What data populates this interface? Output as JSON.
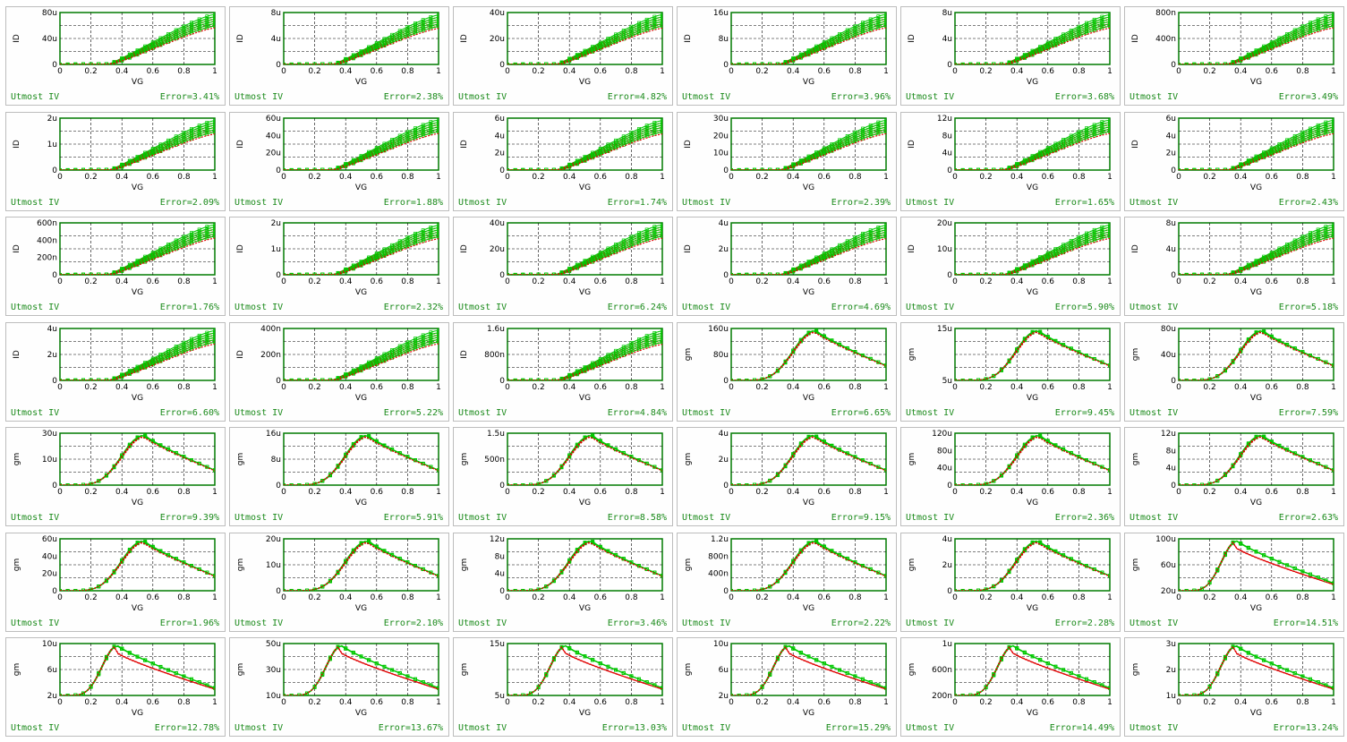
{
  "panel_label": "Utmost IV",
  "colors": {
    "measured": "#00c800",
    "simulated": "#e00000",
    "plot_border": "#007a00",
    "label_text": "#1a8a1a",
    "grid": "#000000"
  },
  "chart_data": [
    {
      "type": "scatter",
      "xlabel": "VG",
      "ylabel": "ID",
      "x_ticks": [
        "0",
        "0.2",
        "0.4",
        "0.6",
        "0.8",
        "1"
      ],
      "y_ticks": [
        "0",
        "40u",
        "80u"
      ],
      "curve": "id",
      "error": "Error=3.41%"
    },
    {
      "type": "scatter",
      "xlabel": "VG",
      "ylabel": "ID",
      "x_ticks": [
        "0",
        "0.2",
        "0.4",
        "0.6",
        "0.8",
        "1"
      ],
      "y_ticks": [
        "0",
        "4u",
        "8u"
      ],
      "curve": "id",
      "error": "Error=2.38%"
    },
    {
      "type": "scatter",
      "xlabel": "VG",
      "ylabel": "ID",
      "x_ticks": [
        "0",
        "0.2",
        "0.4",
        "0.6",
        "0.8",
        "1"
      ],
      "y_ticks": [
        "0",
        "20u",
        "40u"
      ],
      "curve": "id",
      "error": "Error=4.82%"
    },
    {
      "type": "scatter",
      "xlabel": "VG",
      "ylabel": "ID",
      "x_ticks": [
        "0",
        "0.2",
        "0.4",
        "0.6",
        "0.8",
        "1"
      ],
      "y_ticks": [
        "0",
        "8u",
        "16u"
      ],
      "curve": "id",
      "error": "Error=3.96%"
    },
    {
      "type": "scatter",
      "xlabel": "VG",
      "ylabel": "ID",
      "x_ticks": [
        "0",
        "0.2",
        "0.4",
        "0.6",
        "0.8",
        "1"
      ],
      "y_ticks": [
        "0",
        "4u",
        "8u"
      ],
      "curve": "id",
      "error": "Error=3.68%"
    },
    {
      "type": "scatter",
      "xlabel": "VG",
      "ylabel": "ID",
      "x_ticks": [
        "0",
        "0.2",
        "0.4",
        "0.6",
        "0.8",
        "1"
      ],
      "y_ticks": [
        "0",
        "400n",
        "800n"
      ],
      "curve": "id",
      "error": "Error=3.49%"
    },
    {
      "type": "scatter",
      "xlabel": "VG",
      "ylabel": "ID",
      "x_ticks": [
        "0",
        "0.2",
        "0.4",
        "0.6",
        "0.8",
        "1"
      ],
      "y_ticks": [
        "0",
        "1u",
        "2u"
      ],
      "curve": "id",
      "error": "Error=2.09%"
    },
    {
      "type": "scatter",
      "xlabel": "VG",
      "ylabel": "ID",
      "x_ticks": [
        "0",
        "0.2",
        "0.4",
        "0.6",
        "0.8",
        "1"
      ],
      "y_ticks": [
        "0",
        "20u",
        "40u",
        "60u"
      ],
      "curve": "id",
      "error": "Error=1.88%"
    },
    {
      "type": "scatter",
      "xlabel": "VG",
      "ylabel": "ID",
      "x_ticks": [
        "0",
        "0.2",
        "0.4",
        "0.6",
        "0.8",
        "1"
      ],
      "y_ticks": [
        "0",
        "2u",
        "4u",
        "6u"
      ],
      "curve": "id",
      "error": "Error=1.74%"
    },
    {
      "type": "scatter",
      "xlabel": "VG",
      "ylabel": "ID",
      "x_ticks": [
        "0",
        "0.2",
        "0.4",
        "0.6",
        "0.8",
        "1"
      ],
      "y_ticks": [
        "0",
        "10u",
        "20u",
        "30u"
      ],
      "curve": "id",
      "error": "Error=2.39%"
    },
    {
      "type": "scatter",
      "xlabel": "VG",
      "ylabel": "ID",
      "x_ticks": [
        "0",
        "0.2",
        "0.4",
        "0.6",
        "0.8",
        "1"
      ],
      "y_ticks": [
        "0",
        "4u",
        "8u",
        "12u"
      ],
      "curve": "id",
      "error": "Error=1.65%"
    },
    {
      "type": "scatter",
      "xlabel": "VG",
      "ylabel": "ID",
      "x_ticks": [
        "0",
        "0.2",
        "0.4",
        "0.6",
        "0.8",
        "1"
      ],
      "y_ticks": [
        "0",
        "2u",
        "4u",
        "6u"
      ],
      "curve": "id",
      "error": "Error=2.43%"
    },
    {
      "type": "scatter",
      "xlabel": "VG",
      "ylabel": "ID",
      "x_ticks": [
        "0",
        "0.2",
        "0.4",
        "0.6",
        "0.8",
        "1"
      ],
      "y_ticks": [
        "0",
        "200n",
        "400n",
        "600n"
      ],
      "curve": "id",
      "error": "Error=1.76%"
    },
    {
      "type": "scatter",
      "xlabel": "VG",
      "ylabel": "ID",
      "x_ticks": [
        "0",
        "0.2",
        "0.4",
        "0.6",
        "0.8",
        "1"
      ],
      "y_ticks": [
        "0",
        "1u",
        "2u"
      ],
      "curve": "id",
      "error": "Error=2.32%"
    },
    {
      "type": "scatter",
      "xlabel": "VG",
      "ylabel": "ID",
      "x_ticks": [
        "0",
        "0.2",
        "0.4",
        "0.6",
        "0.8",
        "1"
      ],
      "y_ticks": [
        "0",
        "20u",
        "40u"
      ],
      "curve": "id",
      "error": "Error=6.24%"
    },
    {
      "type": "scatter",
      "xlabel": "VG",
      "ylabel": "ID",
      "x_ticks": [
        "0",
        "0.2",
        "0.4",
        "0.6",
        "0.8",
        "1"
      ],
      "y_ticks": [
        "0",
        "2u",
        "4u"
      ],
      "curve": "id",
      "error": "Error=4.69%"
    },
    {
      "type": "scatter",
      "xlabel": "VG",
      "ylabel": "ID",
      "x_ticks": [
        "0",
        "0.2",
        "0.4",
        "0.6",
        "0.8",
        "1"
      ],
      "y_ticks": [
        "0",
        "10u",
        "20u"
      ],
      "curve": "id",
      "error": "Error=5.90%"
    },
    {
      "type": "scatter",
      "xlabel": "VG",
      "ylabel": "ID",
      "x_ticks": [
        "0",
        "0.2",
        "0.4",
        "0.6",
        "0.8",
        "1"
      ],
      "y_ticks": [
        "0",
        "4u",
        "8u"
      ],
      "curve": "id",
      "error": "Error=5.18%"
    },
    {
      "type": "scatter",
      "xlabel": "VG",
      "ylabel": "ID",
      "x_ticks": [
        "0",
        "0.2",
        "0.4",
        "0.6",
        "0.8",
        "1"
      ],
      "y_ticks": [
        "0",
        "2u",
        "4u"
      ],
      "curve": "id",
      "error": "Error=6.60%"
    },
    {
      "type": "scatter",
      "xlabel": "VG",
      "ylabel": "ID",
      "x_ticks": [
        "0",
        "0.2",
        "0.4",
        "0.6",
        "0.8",
        "1"
      ],
      "y_ticks": [
        "0",
        "200n",
        "400n"
      ],
      "curve": "id",
      "error": "Error=5.22%"
    },
    {
      "type": "scatter",
      "xlabel": "VG",
      "ylabel": "ID",
      "x_ticks": [
        "0",
        "0.2",
        "0.4",
        "0.6",
        "0.8",
        "1"
      ],
      "y_ticks": [
        "0",
        "800n",
        "1.6u"
      ],
      "curve": "id",
      "error": "Error=4.84%"
    },
    {
      "type": "scatter",
      "xlabel": "VG",
      "ylabel": "gm",
      "x_ticks": [
        "0",
        "0.2",
        "0.4",
        "0.6",
        "0.8",
        "1"
      ],
      "y_ticks": [
        "0",
        "80u",
        "160u"
      ],
      "curve": "gm",
      "error": "Error=6.65%"
    },
    {
      "type": "scatter",
      "xlabel": "VG",
      "ylabel": "gm",
      "x_ticks": [
        "0",
        "0.2",
        "0.4",
        "0.6",
        "0.8",
        "1"
      ],
      "y_ticks": [
        "5u",
        "15u"
      ],
      "curve": "gm",
      "error": "Error=9.45%"
    },
    {
      "type": "scatter",
      "xlabel": "VG",
      "ylabel": "gm",
      "x_ticks": [
        "0",
        "0.2",
        "0.4",
        "0.6",
        "0.8",
        "1"
      ],
      "y_ticks": [
        "0",
        "40u",
        "80u"
      ],
      "curve": "gm",
      "error": "Error=7.59%"
    },
    {
      "type": "scatter",
      "xlabel": "VG",
      "ylabel": "gm",
      "x_ticks": [
        "0",
        "0.2",
        "0.4",
        "0.6",
        "0.8",
        "1"
      ],
      "y_ticks": [
        "0",
        "10u",
        "30u"
      ],
      "curve": "gm",
      "error": "Error=9.39%"
    },
    {
      "type": "scatter",
      "xlabel": "VG",
      "ylabel": "gm",
      "x_ticks": [
        "0",
        "0.2",
        "0.4",
        "0.6",
        "0.8",
        "1"
      ],
      "y_ticks": [
        "0",
        "8u",
        "16u"
      ],
      "curve": "gm",
      "error": "Error=5.91%"
    },
    {
      "type": "scatter",
      "xlabel": "VG",
      "ylabel": "gm",
      "x_ticks": [
        "0",
        "0.2",
        "0.4",
        "0.6",
        "0.8",
        "1"
      ],
      "y_ticks": [
        "0",
        "500n",
        "1.5u"
      ],
      "curve": "gm",
      "error": "Error=8.58%"
    },
    {
      "type": "scatter",
      "xlabel": "VG",
      "ylabel": "gm",
      "x_ticks": [
        "0",
        "0.2",
        "0.4",
        "0.6",
        "0.8",
        "1"
      ],
      "y_ticks": [
        "0",
        "2u",
        "4u"
      ],
      "curve": "gm",
      "error": "Error=9.15%"
    },
    {
      "type": "scatter",
      "xlabel": "VG",
      "ylabel": "gm",
      "x_ticks": [
        "0",
        "0.2",
        "0.4",
        "0.6",
        "0.8",
        "1"
      ],
      "y_ticks": [
        "0",
        "40u",
        "80u",
        "120u"
      ],
      "curve": "gm",
      "error": "Error=2.36%"
    },
    {
      "type": "scatter",
      "xlabel": "VG",
      "ylabel": "gm",
      "x_ticks": [
        "0",
        "0.2",
        "0.4",
        "0.6",
        "0.8",
        "1"
      ],
      "y_ticks": [
        "0",
        "4u",
        "8u",
        "12u"
      ],
      "curve": "gm",
      "error": "Error=2.63%"
    },
    {
      "type": "scatter",
      "xlabel": "VG",
      "ylabel": "gm",
      "x_ticks": [
        "0",
        "0.2",
        "0.4",
        "0.6",
        "0.8",
        "1"
      ],
      "y_ticks": [
        "0",
        "20u",
        "40u",
        "60u"
      ],
      "curve": "gm",
      "error": "Error=1.96%"
    },
    {
      "type": "scatter",
      "xlabel": "VG",
      "ylabel": "gm",
      "x_ticks": [
        "0",
        "0.2",
        "0.4",
        "0.6",
        "0.8",
        "1"
      ],
      "y_ticks": [
        "0",
        "10u",
        "20u"
      ],
      "curve": "gm",
      "error": "Error=2.10%"
    },
    {
      "type": "scatter",
      "xlabel": "VG",
      "ylabel": "gm",
      "x_ticks": [
        "0",
        "0.2",
        "0.4",
        "0.6",
        "0.8",
        "1"
      ],
      "y_ticks": [
        "0",
        "4u",
        "8u",
        "12u"
      ],
      "curve": "gm",
      "error": "Error=3.46%"
    },
    {
      "type": "scatter",
      "xlabel": "VG",
      "ylabel": "gm",
      "x_ticks": [
        "0",
        "0.2",
        "0.4",
        "0.6",
        "0.8",
        "1"
      ],
      "y_ticks": [
        "0",
        "400n",
        "800n",
        "1.2u"
      ],
      "curve": "gm",
      "error": "Error=2.22%"
    },
    {
      "type": "scatter",
      "xlabel": "VG",
      "ylabel": "gm",
      "x_ticks": [
        "0",
        "0.2",
        "0.4",
        "0.6",
        "0.8",
        "1"
      ],
      "y_ticks": [
        "0",
        "2u",
        "4u"
      ],
      "curve": "gm",
      "error": "Error=2.28%"
    },
    {
      "type": "scatter",
      "xlabel": "VG",
      "ylabel": "gm",
      "x_ticks": [
        "0",
        "0.2",
        "0.4",
        "0.6",
        "0.8",
        "1"
      ],
      "y_ticks": [
        "20u",
        "60u",
        "100u"
      ],
      "curve": "gm2",
      "error": "Error=14.51%"
    },
    {
      "type": "scatter",
      "xlabel": "VG",
      "ylabel": "gm",
      "x_ticks": [
        "0",
        "0.2",
        "0.4",
        "0.6",
        "0.8",
        "1"
      ],
      "y_ticks": [
        "2u",
        "6u",
        "10u"
      ],
      "curve": "gm2",
      "error": "Error=12.78%"
    },
    {
      "type": "scatter",
      "xlabel": "VG",
      "ylabel": "gm",
      "x_ticks": [
        "0",
        "0.2",
        "0.4",
        "0.6",
        "0.8",
        "1"
      ],
      "y_ticks": [
        "10u",
        "30u",
        "50u"
      ],
      "curve": "gm2",
      "error": "Error=13.67%"
    },
    {
      "type": "scatter",
      "xlabel": "VG",
      "ylabel": "gm",
      "x_ticks": [
        "0",
        "0.2",
        "0.4",
        "0.6",
        "0.8",
        "1"
      ],
      "y_ticks": [
        "5u",
        "15u"
      ],
      "curve": "gm2",
      "error": "Error=13.03%"
    },
    {
      "type": "scatter",
      "xlabel": "VG",
      "ylabel": "gm",
      "x_ticks": [
        "0",
        "0.2",
        "0.4",
        "0.6",
        "0.8",
        "1"
      ],
      "y_ticks": [
        "2u",
        "6u",
        "10u"
      ],
      "curve": "gm2",
      "error": "Error=15.29%"
    },
    {
      "type": "scatter",
      "xlabel": "VG",
      "ylabel": "gm",
      "x_ticks": [
        "0",
        "0.2",
        "0.4",
        "0.6",
        "0.8",
        "1"
      ],
      "y_ticks": [
        "200n",
        "600n",
        "1u"
      ],
      "curve": "gm2",
      "error": "Error=14.49%"
    },
    {
      "type": "scatter",
      "xlabel": "VG",
      "ylabel": "gm",
      "x_ticks": [
        "0",
        "0.2",
        "0.4",
        "0.6",
        "0.8",
        "1"
      ],
      "y_ticks": [
        "1u",
        "2u",
        "3u"
      ],
      "curve": "gm2",
      "error": "Error=13.24%"
    }
  ]
}
